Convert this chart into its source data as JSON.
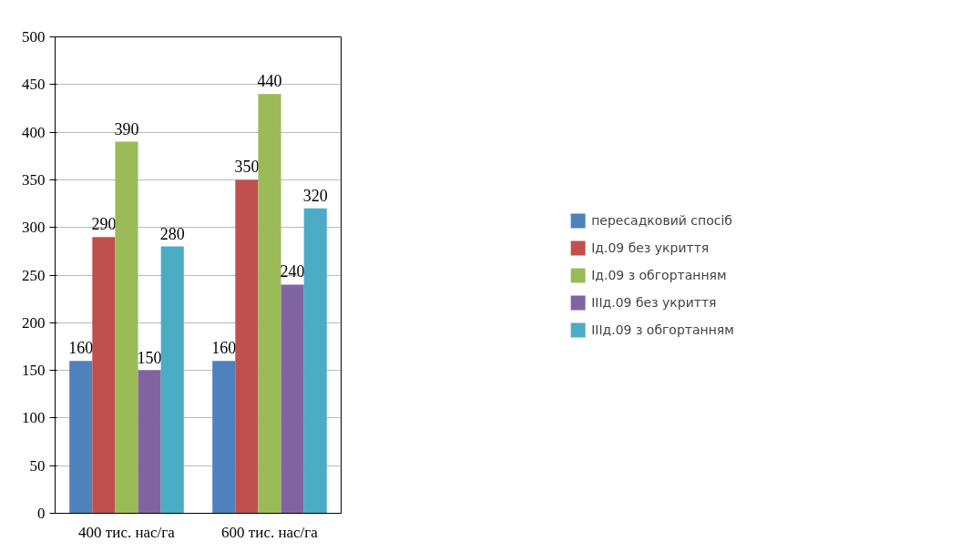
{
  "chart_data": {
    "type": "bar",
    "categories": [
      "400 тис. нас/га",
      "600 тис. нас/га"
    ],
    "series": [
      {
        "name": "пересадковий спосіб",
        "color": "#4f81bd",
        "values": [
          160,
          160
        ]
      },
      {
        "name": "Ід.09 без укриття",
        "color": "#c0504d",
        "values": [
          290,
          350
        ]
      },
      {
        "name": "Ід.09 з обгортанням",
        "color": "#9bbb59",
        "values": [
          390,
          440
        ]
      },
      {
        "name": "ІІІд.09 без укриття",
        "color": "#8064a2",
        "values": [
          150,
          240
        ]
      },
      {
        "name": "ІІІд.09 з обгортанням",
        "color": "#4bacc6",
        "values": [
          280,
          320
        ]
      }
    ],
    "ylim": [
      0,
      500
    ],
    "yticks": [
      0,
      50,
      100,
      150,
      200,
      250,
      300,
      350,
      400,
      450,
      500
    ],
    "grid": "y",
    "legend": "right",
    "data_labels": true
  }
}
